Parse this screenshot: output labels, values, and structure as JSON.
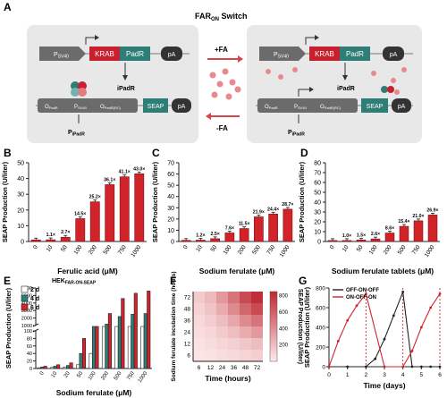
{
  "panels": {
    "A": {
      "letter": "A",
      "title_main": "FAR",
      "title_sub": "ON",
      "title_rest": " Switch",
      "promoter_sv40_main": "P",
      "promoter_sv40_sub": "SV40",
      "krab": "KRAB",
      "padr": "PadR",
      "pa": "pA",
      "ipadr": "iPadR",
      "o_padr_main": "O",
      "o_padr_sub": "PadR",
      "p_sv40_main": "P",
      "p_sv40_sub": "SV40",
      "o_padr_rc_main": "O",
      "o_padr_rc_sub": "PadR(RC)",
      "seap": "SEAP",
      "p_ipadr_main": "P",
      "p_ipadr_sub": "iPadR",
      "plus_fa": "+FA",
      "minus_fa": "-FA",
      "colors": {
        "krab": "#c8202f",
        "padr": "#2f7d77",
        "gray_box": "#5b5b5b",
        "panel_bg": "#e8e8e8",
        "red_arrow": "#d9434a"
      }
    },
    "B": {
      "letter": "B"
    },
    "C": {
      "letter": "C"
    },
    "D": {
      "letter": "D"
    },
    "E": {
      "letter": "E",
      "cell_line_main": "HEK",
      "cell_line_sub": "FAR-ON-SEAP"
    },
    "F": {
      "letter": "F"
    },
    "G": {
      "letter": "G"
    }
  },
  "chart_data": [
    {
      "id": "B",
      "type": "bar",
      "xlabel": "Ferulic acid (μM)",
      "ylabel": "SEAP Production (U/liter)",
      "categories": [
        "0",
        "10",
        "50",
        "100",
        "200",
        "500",
        "750",
        "1000"
      ],
      "values": [
        1.0,
        1.1,
        2.7,
        14.5,
        25.2,
        36.1,
        41.1,
        43.0
      ],
      "labels": [
        "",
        "1.1×",
        "2.7×",
        "14.5×",
        "25.2×",
        "36.1×",
        "41.1×",
        "43.0×"
      ],
      "ylim": [
        0,
        50
      ],
      "yticks": [
        0,
        10,
        20,
        30,
        40,
        50
      ],
      "color": "#d2232a"
    },
    {
      "id": "C",
      "type": "bar",
      "xlabel": "Sodium ferulate (μM)",
      "ylabel": "SEAP Production (U/liter)",
      "categories": [
        "0",
        "10",
        "50",
        "100",
        "200",
        "500",
        "750",
        "1000"
      ],
      "values": [
        1.0,
        1.2,
        2.5,
        7.6,
        11.5,
        21.9,
        24.4,
        28.7
      ],
      "labels": [
        "",
        "1.2×",
        "2.5×",
        "7.6×",
        "11.5×",
        "21.9×",
        "24.4×",
        "28.7×"
      ],
      "ylim": [
        0,
        70
      ],
      "yticks": [
        0,
        10,
        20,
        30,
        40,
        50,
        60,
        70
      ],
      "color": "#d2232a"
    },
    {
      "id": "D",
      "type": "bar",
      "xlabel": "Sodium ferulate tablets (μM)",
      "ylabel": "SEAP Production (U/liter)",
      "categories": [
        "0",
        "10",
        "50",
        "100",
        "200",
        "500",
        "750",
        "1000"
      ],
      "values": [
        1.0,
        1.0,
        1.5,
        2.6,
        8.6,
        15.4,
        21.0,
        26.9
      ],
      "labels": [
        "",
        "1.0×",
        "1.5×",
        "2.6×",
        "8.6×",
        "15.4×",
        "21.0×",
        "26.9×"
      ],
      "ylim": [
        0,
        80
      ],
      "yticks": [
        0,
        10,
        20,
        30,
        40,
        50,
        60,
        70,
        80
      ],
      "color": "#d2232a"
    },
    {
      "id": "E",
      "type": "bar",
      "xlabel": "Sodium ferulate (μM)",
      "ylabel": "SEAP Production (U/liter)",
      "categories": [
        "0",
        "10",
        "20",
        "50",
        "100",
        "200",
        "500",
        "750",
        "1000"
      ],
      "series": [
        {
          "name": "2 d",
          "color": "#ffffff",
          "values": [
            2,
            3,
            4,
            10,
            40,
            120,
            180,
            200,
            210
          ]
        },
        {
          "name": "4 d",
          "color": "#2f7d77",
          "values": [
            4,
            6,
            8,
            40,
            300,
            1200,
            2200,
            2500,
            2600
          ]
        },
        {
          "name": "6 d",
          "color": "#d2232a",
          "values": [
            6,
            10,
            15,
            80,
            900,
            2600,
            4600,
            5300,
            5600
          ]
        }
      ],
      "ylim": [
        0,
        6000
      ],
      "yticks": [
        0,
        20,
        40,
        60,
        80,
        100,
        1000,
        2000,
        3000,
        4000,
        5000,
        6000
      ],
      "axis_break": true
    },
    {
      "id": "F",
      "type": "heatmap",
      "xlabel": "Time (hours)",
      "ylabel": "Sodium ferulate incubation time (hours)",
      "x": [
        "6",
        "12",
        "24",
        "36",
        "48",
        "72"
      ],
      "y": [
        "6",
        "12",
        "24",
        "36",
        "48",
        "72"
      ],
      "values": [
        [
          30,
          40,
          60,
          80,
          100,
          120
        ],
        [
          40,
          60,
          90,
          120,
          160,
          200
        ],
        [
          60,
          90,
          140,
          200,
          280,
          360
        ],
        [
          80,
          130,
          200,
          300,
          420,
          520
        ],
        [
          110,
          170,
          280,
          420,
          580,
          700
        ],
        [
          140,
          220,
          360,
          520,
          700,
          820
        ]
      ],
      "colorbar": {
        "label": "SEAP Production (U/liter)",
        "ticks": [
          200,
          400,
          600,
          800
        ],
        "range": [
          0,
          850
        ]
      }
    },
    {
      "id": "G",
      "type": "line",
      "xlabel": "Time (days)",
      "ylabel": "SEAP Production (U/liter)",
      "series": [
        {
          "name": "OFF-ON-OFF",
          "color": "#222222",
          "x": [
            0,
            1,
            2,
            2.5,
            3,
            3.5,
            4,
            4.5,
            5,
            5.5,
            6
          ],
          "y": [
            0,
            0,
            0,
            80,
            280,
            520,
            760,
            0,
            0,
            0,
            0
          ]
        },
        {
          "name": "ON-OFF-ON",
          "color": "#d2232a",
          "x": [
            0,
            0.5,
            1,
            1.5,
            2,
            3,
            4,
            4.5,
            5,
            5.5,
            6
          ],
          "y": [
            0,
            260,
            470,
            620,
            740,
            0,
            0,
            160,
            400,
            600,
            740
          ]
        }
      ],
      "xlim": [
        0,
        6
      ],
      "xticks": [
        0,
        1,
        2,
        3,
        4,
        5,
        6
      ],
      "ylim": [
        0,
        800
      ],
      "yticks": [
        0,
        200,
        400,
        600,
        800
      ],
      "vlines": [
        2,
        4,
        6
      ]
    }
  ]
}
